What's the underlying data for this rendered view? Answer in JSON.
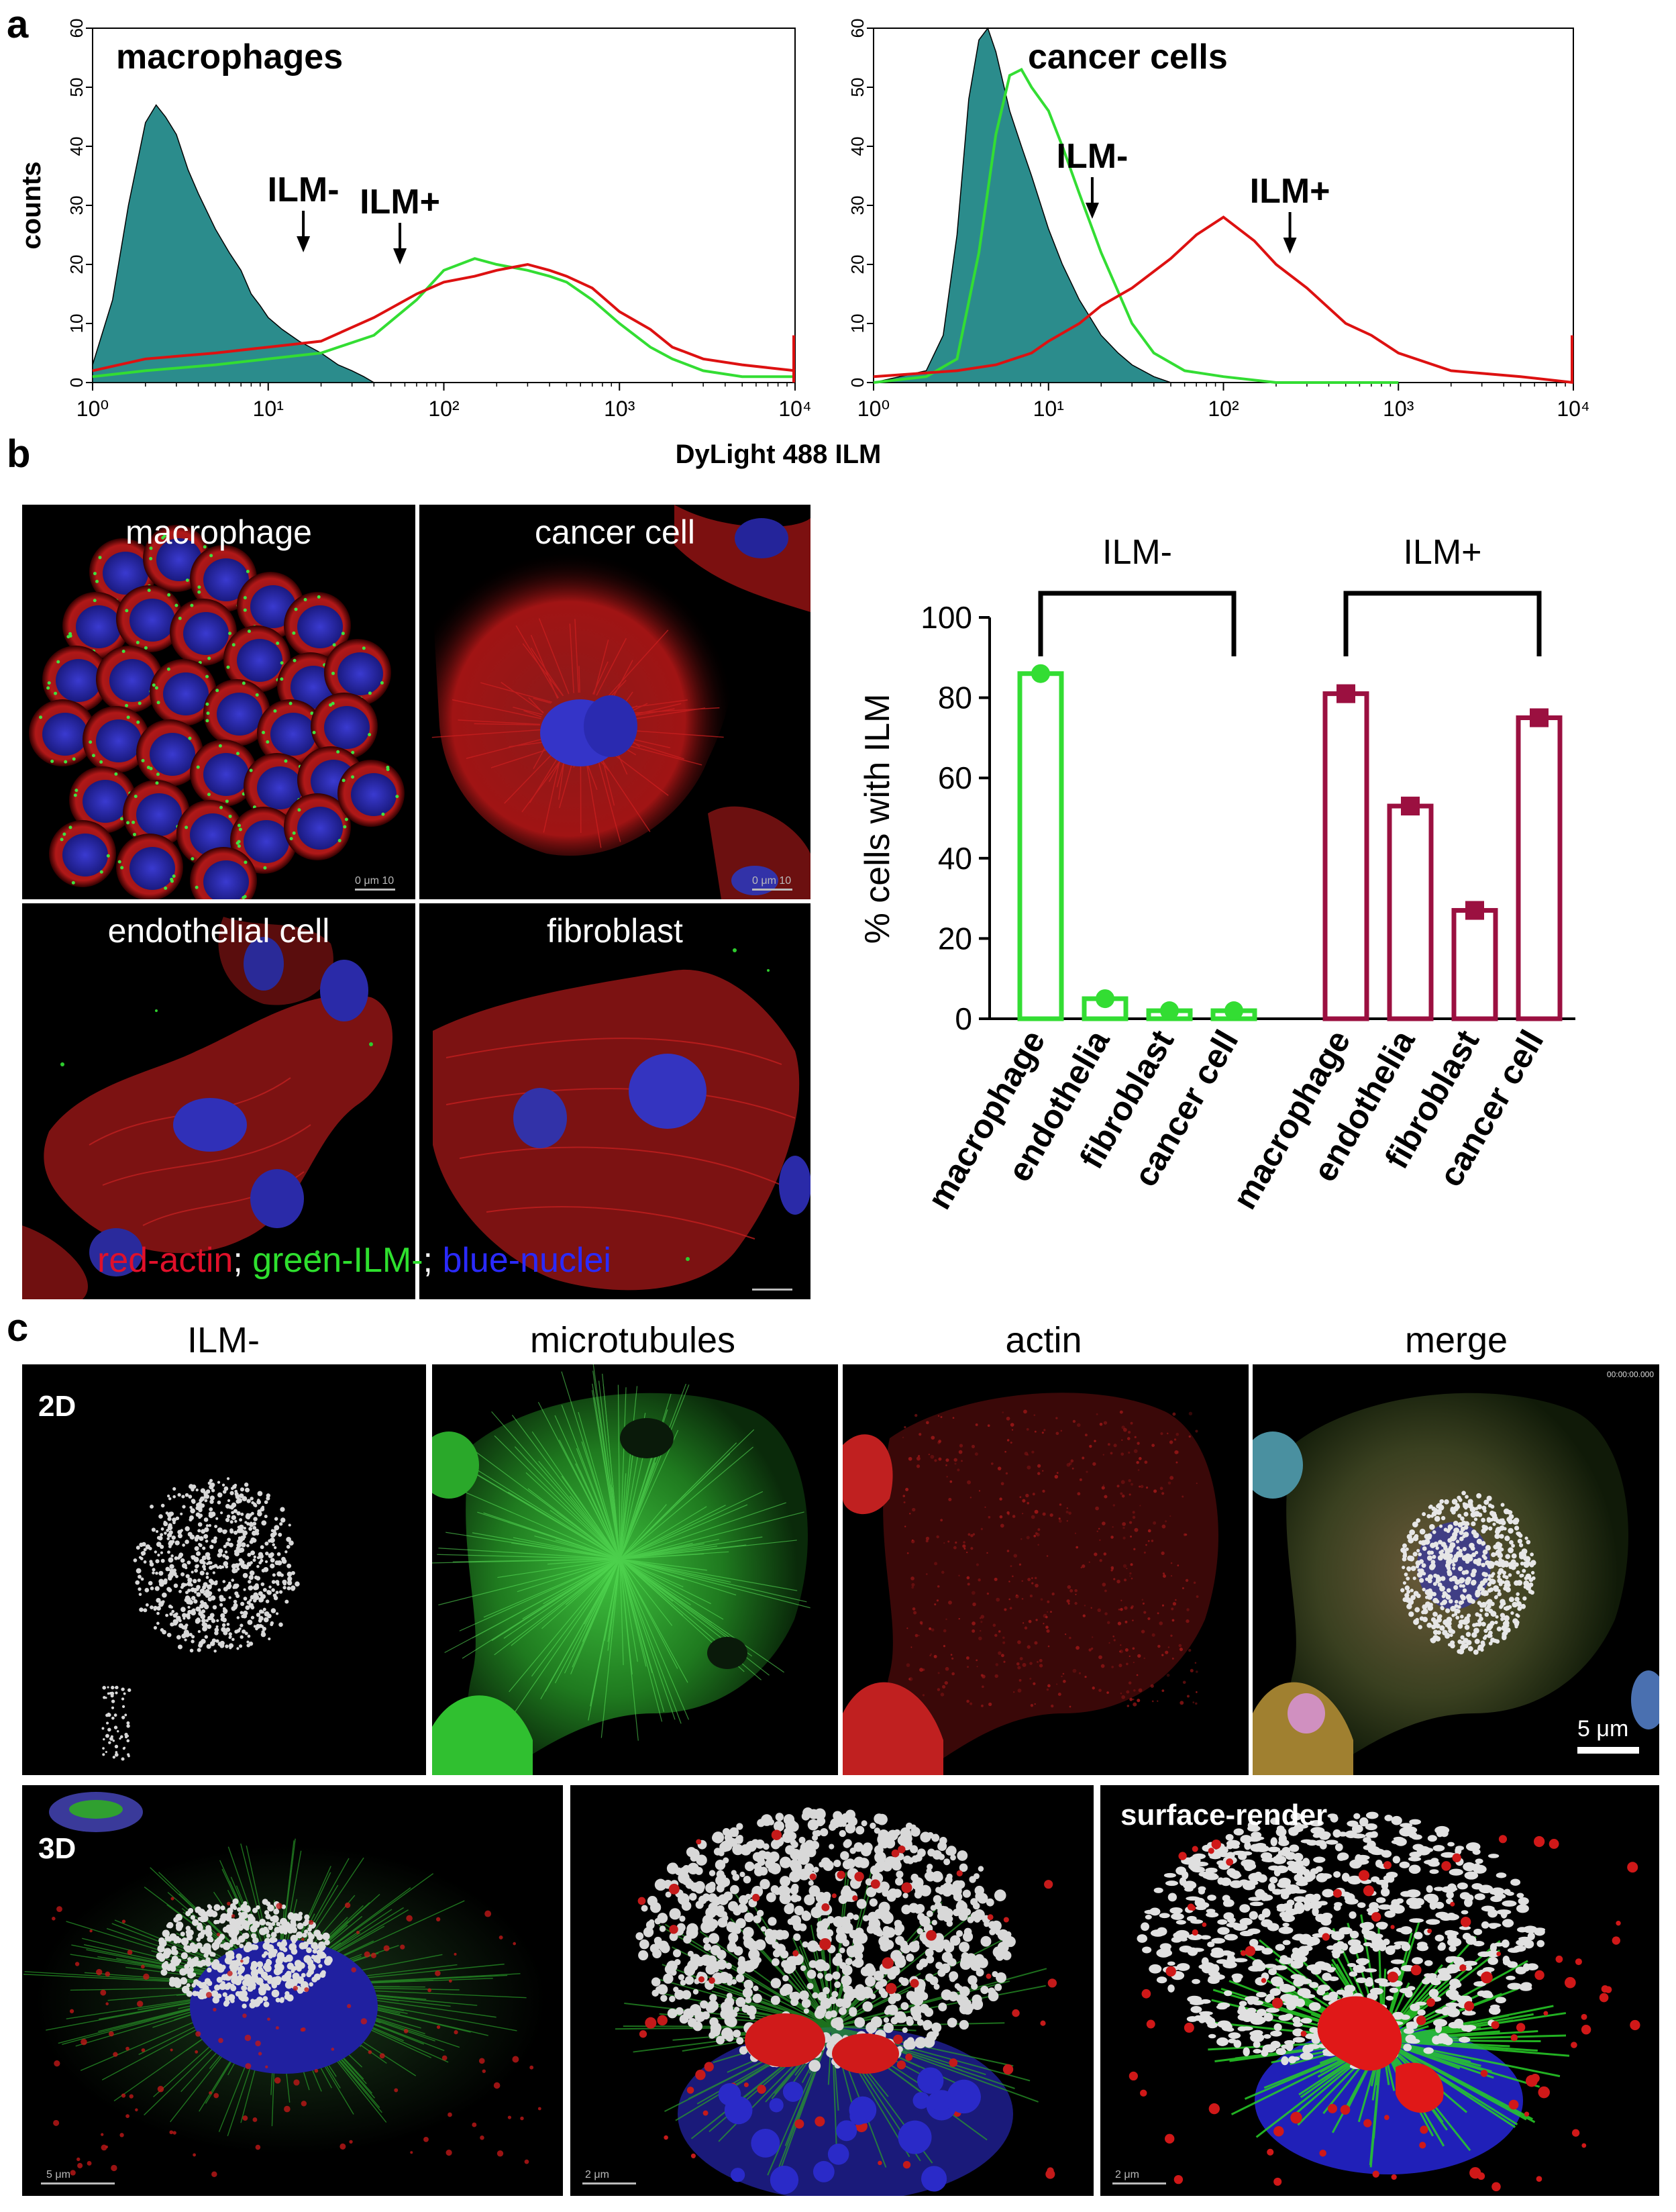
{
  "panel_a": {
    "letter": "a",
    "x_axis_label": "DyLight 488 ILM",
    "charts": [
      {
        "title": "macrophages",
        "y_axis_label": "counts",
        "y_ticks": [
          "0",
          "10",
          "20",
          "30",
          "40",
          "50",
          "60"
        ],
        "x_ticks": [
          "10⁰",
          "10¹",
          "10²",
          "10³",
          "10⁴"
        ],
        "annotations": [
          {
            "text": "ILM-",
            "arrow_x_value": 1.2
          },
          {
            "text": "ILM+",
            "arrow_x_value": 1.75
          }
        ]
      },
      {
        "title": "cancer cells",
        "y_axis_label": "",
        "y_ticks": [
          "0",
          "10",
          "20",
          "30",
          "40",
          "50",
          "60"
        ],
        "x_ticks": [
          "10⁰",
          "10¹",
          "10²",
          "10³",
          "10⁴"
        ],
        "annotations": [
          {
            "text": "ILM-",
            "arrow_x_value": 1.25
          },
          {
            "text": "ILM+",
            "arrow_x_value": 2.38
          }
        ]
      }
    ]
  },
  "panel_b": {
    "letter": "b",
    "images": [
      {
        "label": "macrophage"
      },
      {
        "label": "cancer cell"
      },
      {
        "label": "endothelial cell"
      },
      {
        "label": "fibroblast"
      }
    ],
    "legend": {
      "red": "red-actin",
      "sep1": "; ",
      "green": "green-ILM-",
      "sep2": "; ",
      "blue": "blue-nuclei"
    },
    "scale_text": "0    μm   10"
  },
  "panel_c": {
    "letter": "c",
    "column_titles": [
      "ILM-",
      "microtubules",
      "actin",
      "merge"
    ],
    "row_labels": {
      "2d": "2D",
      "3d": "3D"
    },
    "surface_label": "surface-render",
    "scale_2d": "5 μm",
    "timestamp": "00:00:00.000",
    "scale_3d": [
      "5 μm",
      "2 μm",
      "2 μm"
    ]
  },
  "colors": {
    "ilm_minus": "#33dd33",
    "ilm_plus": "#9b1040",
    "flow_red": "#dd1111",
    "teal": "#2b8c8c"
  },
  "chart_data": [
    {
      "type": "area",
      "title": "macrophages",
      "xlabel": "DyLight 488 ILM",
      "ylabel": "counts",
      "x_scale": "log",
      "xlim": [
        1,
        10000
      ],
      "ylim": [
        0,
        60
      ],
      "series": [
        {
          "name": "",
          "color": "#2b8c8c",
          "x": [
            1,
            1.3,
            1.6,
            2,
            2.3,
            2.6,
            3,
            3.5,
            4,
            5,
            6,
            7,
            8,
            9,
            10,
            12,
            15,
            20,
            25,
            30,
            35,
            40
          ],
          "y": [
            3,
            14,
            30,
            44,
            47,
            45,
            42,
            36,
            32,
            26,
            22,
            19,
            15,
            13,
            11,
            9,
            7,
            5,
            3,
            2,
            1,
            0
          ]
        },
        {
          "name": "ILM-",
          "color": "#33dd33",
          "x": [
            1,
            2,
            5,
            10,
            20,
            40,
            70,
            100,
            150,
            200,
            300,
            400,
            500,
            700,
            1000,
            1500,
            2000,
            3000,
            5000,
            10000
          ],
          "y": [
            1,
            2,
            3,
            4,
            5,
            8,
            14,
            19,
            21,
            20,
            19,
            18,
            17,
            14,
            10,
            6,
            4,
            2,
            1,
            1
          ]
        },
        {
          "name": "ILM+",
          "color": "#dd1111",
          "x": [
            1,
            2,
            5,
            10,
            20,
            40,
            70,
            100,
            150,
            200,
            300,
            400,
            500,
            700,
            1000,
            1500,
            2000,
            3000,
            5000,
            10000
          ],
          "y": [
            2,
            4,
            5,
            6,
            7,
            11,
            15,
            17,
            18,
            19,
            20,
            19,
            18,
            16,
            12,
            9,
            6,
            4,
            3,
            2
          ]
        }
      ]
    },
    {
      "type": "area",
      "title": "cancer cells",
      "xlabel": "DyLight 488 ILM",
      "ylabel": "",
      "x_scale": "log",
      "xlim": [
        1,
        10000
      ],
      "ylim": [
        0,
        60
      ],
      "series": [
        {
          "name": "",
          "color": "#2b8c8c",
          "x": [
            1,
            2,
            2.5,
            3,
            3.5,
            4,
            4.5,
            5,
            6,
            7,
            8,
            10,
            12,
            15,
            20,
            25,
            30,
            40,
            50
          ],
          "y": [
            0,
            2,
            8,
            25,
            48,
            58,
            60,
            56,
            46,
            40,
            35,
            26,
            20,
            14,
            8,
            5,
            3,
            1,
            0
          ]
        },
        {
          "name": "ILM-",
          "color": "#33dd33",
          "x": [
            1,
            2,
            3,
            4,
            5,
            6,
            7,
            8,
            10,
            12,
            15,
            20,
            30,
            40,
            60,
            100,
            200,
            1000
          ],
          "y": [
            0,
            1,
            4,
            22,
            42,
            52,
            53,
            50,
            46,
            40,
            32,
            22,
            10,
            5,
            2,
            1,
            0,
            0
          ]
        },
        {
          "name": "ILM+",
          "color": "#dd1111",
          "x": [
            1,
            3,
            5,
            8,
            10,
            15,
            20,
            30,
            50,
            70,
            100,
            150,
            200,
            300,
            500,
            700,
            1000,
            2000,
            5000,
            10000
          ],
          "y": [
            1,
            2,
            3,
            5,
            7,
            10,
            13,
            16,
            21,
            25,
            28,
            24,
            20,
            16,
            10,
            8,
            5,
            2,
            1,
            0
          ]
        }
      ]
    },
    {
      "type": "bar",
      "title": "",
      "ylabel": "% cells with ILM",
      "ylim": [
        0,
        100
      ],
      "y_ticks": [
        0,
        20,
        40,
        60,
        80,
        100
      ],
      "categories": [
        "macrophage",
        "endothelia",
        "fibroblast",
        "cancer cell",
        "macrophage",
        "endothelia",
        "fibroblast",
        "cancer cell"
      ],
      "groups": [
        {
          "name": "ILM-",
          "color": "#33dd33",
          "categories": [
            "macrophage",
            "endothelia",
            "fibroblast",
            "cancer cell"
          ],
          "values": [
            86,
            5,
            2,
            2
          ]
        },
        {
          "name": "ILM+",
          "color": "#9b1040",
          "categories": [
            "macrophage",
            "endothelia",
            "fibroblast",
            "cancer cell"
          ],
          "values": [
            81,
            53,
            27,
            75
          ]
        }
      ]
    }
  ]
}
